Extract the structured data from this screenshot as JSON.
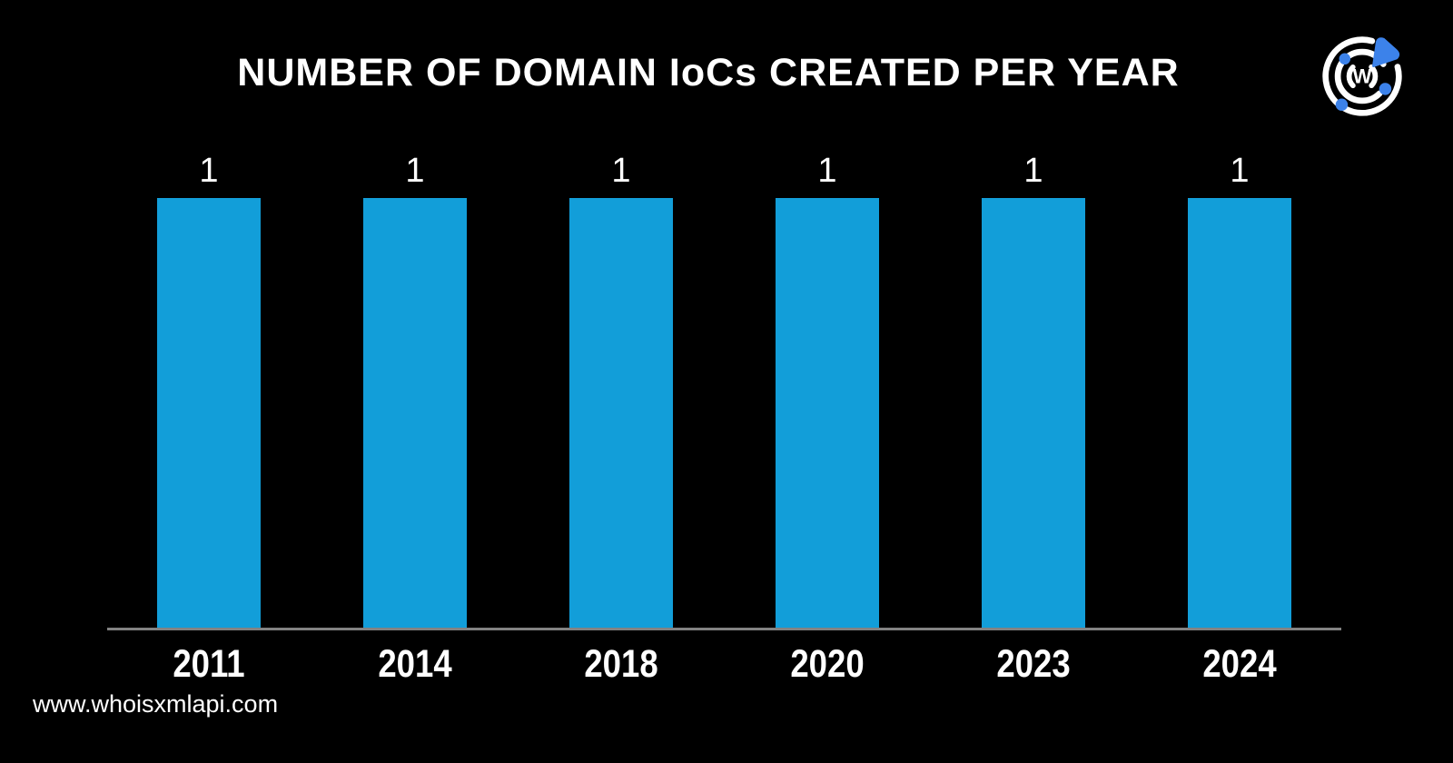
{
  "page": {
    "background": "#000000",
    "footer_url": "www.whoisxmlapi.com"
  },
  "header": {
    "title": "NUMBER OF DOMAIN IoCs CREATED PER YEAR",
    "logo": {
      "name": "whoisxmlapi-logo",
      "letter": "W",
      "ring_color": "#FFFFFF",
      "accent_color": "#3C82EA"
    }
  },
  "chart_data": {
    "type": "bar",
    "title": "NUMBER OF DOMAIN IoCs CREATED PER YEAR",
    "categories": [
      "2011",
      "2014",
      "2018",
      "2020",
      "2023",
      "2024"
    ],
    "values": [
      1,
      1,
      1,
      1,
      1,
      1
    ],
    "xlabel": "",
    "ylabel": "",
    "ylim": [
      0,
      1
    ],
    "bar_color": "#129ED9",
    "value_label_color": "#FFFFFF",
    "axis_line_color": "#828282",
    "grid": false,
    "legend": false
  }
}
